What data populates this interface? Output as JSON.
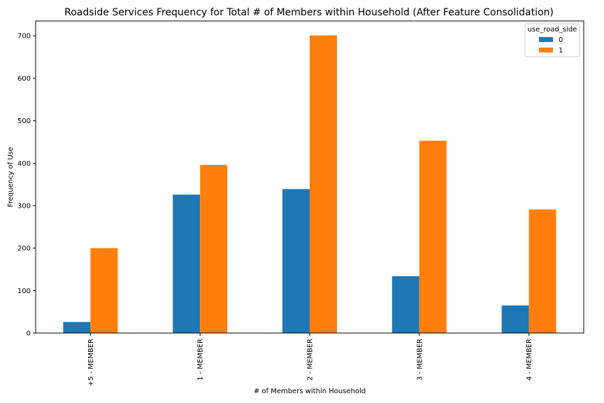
{
  "chart_data": {
    "type": "bar",
    "title": "Roadside Services Frequency for Total # of Members within Household (After Feature Consolidation)",
    "xlabel": "# of Members within Household",
    "ylabel": "Frequency of Use",
    "categories": [
      "+5 - MEMBER",
      "1 - MEMBER",
      "2 - MEMBER",
      "3 - MEMBER",
      "4 - MEMBER"
    ],
    "series": [
      {
        "name": "0",
        "values": [
          26,
          326,
          339,
          134,
          65
        ],
        "color": "#1f77b4"
      },
      {
        "name": "1",
        "values": [
          200,
          396,
          701,
          453,
          291
        ],
        "color": "#ff7f0e"
      }
    ],
    "ylim": [
      0,
      735
    ],
    "yticks": [
      0,
      100,
      200,
      300,
      400,
      500,
      600,
      700
    ],
    "legend": {
      "title": "use_road_side",
      "position": "top-right"
    },
    "grid": false
  }
}
